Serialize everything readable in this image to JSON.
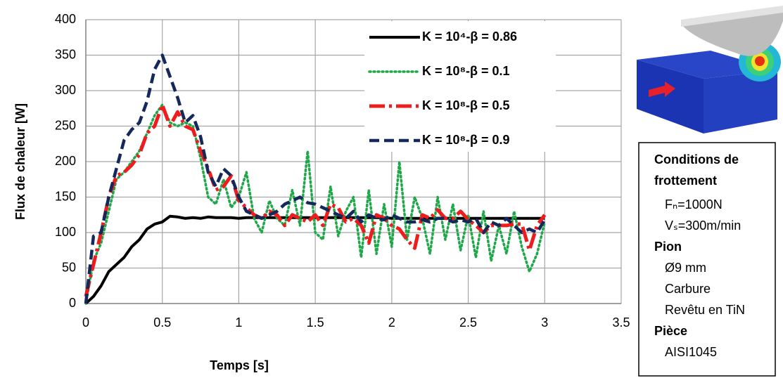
{
  "chart_data": {
    "type": "line",
    "x_label": "Temps [s]",
    "y_label": "Flux de chaleur [W]",
    "xlim": [
      0,
      3.5
    ],
    "xticks": [
      0,
      0.5,
      1,
      1.5,
      2,
      2.5,
      3,
      3.5
    ],
    "ylim": [
      0,
      400
    ],
    "yticks": [
      0,
      50,
      100,
      150,
      200,
      250,
      300,
      350,
      400
    ],
    "grid": true,
    "legend": "upper right",
    "x": [
      0,
      0.05,
      0.1,
      0.15,
      0.2,
      0.25,
      0.3,
      0.35,
      0.4,
      0.45,
      0.5,
      0.55,
      0.6,
      0.65,
      0.7,
      0.75,
      0.8,
      0.85,
      0.9,
      0.95,
      1,
      1.05,
      1.1,
      1.15,
      1.2,
      1.25,
      1.3,
      1.35,
      1.4,
      1.45,
      1.5,
      1.55,
      1.6,
      1.65,
      1.7,
      1.75,
      1.8,
      1.85,
      1.9,
      1.95,
      2,
      2.05,
      2.1,
      2.15,
      2.2,
      2.25,
      2.3,
      2.35,
      2.4,
      2.45,
      2.5,
      2.55,
      2.6,
      2.65,
      2.7,
      2.75,
      2.8,
      2.85,
      2.9,
      2.95,
      3
    ],
    "series": [
      {
        "name": "K = 10⁴-β = 0.86",
        "color": "#000000",
        "style": "solid",
        "values": [
          0,
          10,
          25,
          45,
          55,
          65,
          80,
          90,
          105,
          112,
          115,
          123,
          122,
          120,
          121,
          120,
          122,
          121,
          121,
          121,
          120,
          121,
          121,
          121,
          121,
          121,
          121,
          121,
          121,
          121,
          121,
          121,
          121,
          121,
          121,
          121,
          121,
          121,
          121,
          121,
          120,
          120,
          120,
          120,
          120,
          120,
          120,
          120,
          120,
          120,
          120,
          120,
          120,
          120,
          120,
          120,
          120,
          120,
          120,
          120,
          120
        ]
      },
      {
        "name": "K = 10⁸-β = 0.1",
        "color": "#1fa84a",
        "style": "dotted",
        "values": [
          0,
          60,
          85,
          130,
          175,
          185,
          200,
          215,
          240,
          265,
          280,
          255,
          250,
          255,
          250,
          205,
          150,
          140,
          175,
          135,
          150,
          185,
          120,
          100,
          145,
          120,
          110,
          160,
          110,
          215,
          100,
          90,
          165,
          95,
          130,
          150,
          65,
          160,
          70,
          140,
          80,
          200,
          90,
          150,
          120,
          70,
          150,
          90,
          140,
          75,
          125,
          65,
          130,
          60,
          110,
          70,
          130,
          80,
          45,
          70,
          115
        ]
      },
      {
        "name": "K = 10⁸-β = 0.5",
        "color": "#ee1c1c",
        "style": "dashdot",
        "values": [
          10,
          55,
          100,
          150,
          180,
          185,
          195,
          210,
          240,
          250,
          280,
          250,
          270,
          250,
          245,
          215,
          190,
          160,
          165,
          180,
          145,
          135,
          125,
          120,
          130,
          125,
          110,
          125,
          120,
          115,
          125,
          110,
          140,
          135,
          115,
          120,
          110,
          85,
          125,
          120,
          110,
          105,
          90,
          78,
          125,
          120,
          132,
          120,
          120,
          130,
          118,
          110,
          100,
          110,
          110,
          110,
          112,
          112,
          75,
          110,
          125
        ]
      },
      {
        "name": "K = 10⁸-β = 0.9",
        "color": "#14285a",
        "style": "dashed",
        "values": [
          0,
          95,
          100,
          150,
          190,
          230,
          245,
          255,
          285,
          330,
          350,
          320,
          290,
          255,
          265,
          235,
          185,
          165,
          190,
          180,
          150,
          130,
          125,
          120,
          125,
          130,
          140,
          145,
          150,
          142,
          140,
          135,
          130,
          125,
          120,
          130,
          115,
          125,
          120,
          118,
          125,
          120,
          115,
          115,
          118,
          115,
          120,
          120,
          115,
          118,
          115,
          120,
          100,
          115,
          110,
          120,
          110,
          100,
          105,
          100,
          118
        ]
      }
    ]
  },
  "side_panel": {
    "lines": [
      {
        "text": "Conditions de",
        "bold": true
      },
      {
        "text": "frottement",
        "bold": true
      },
      {
        "text": "Fₙ=1000N",
        "bold": false
      },
      {
        "text": "Vₛ=300m/min",
        "bold": false
      },
      {
        "text": "Pion",
        "bold": true
      },
      {
        "text": "Ø9 mm",
        "bold": false
      },
      {
        "text": "Carbure",
        "bold": false
      },
      {
        "text": "Revêtu en TiN",
        "bold": false
      },
      {
        "text": "Pièce",
        "bold": true
      },
      {
        "text": "AISI1045",
        "bold": false
      }
    ]
  }
}
